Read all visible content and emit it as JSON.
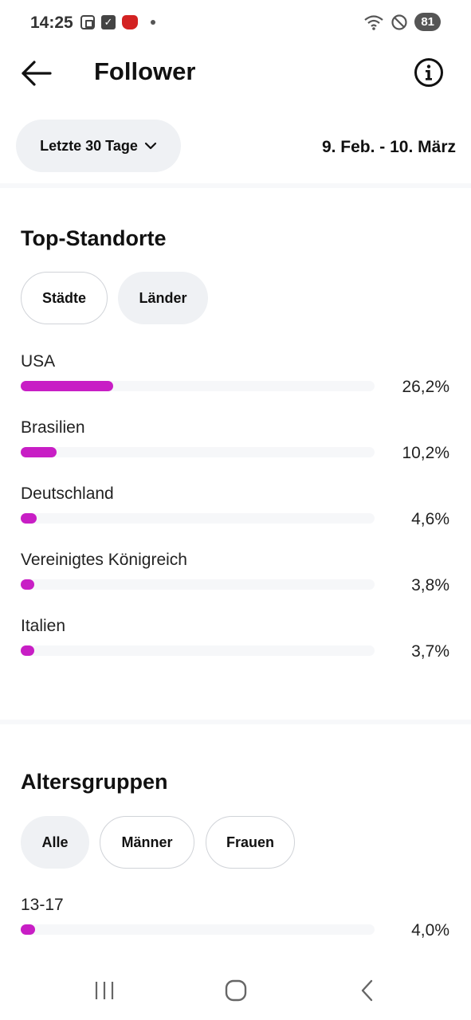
{
  "status_bar": {
    "time": "14:25",
    "battery": "81",
    "icons": [
      "screenshot-icon",
      "checkbox-icon",
      "app-notification-icon",
      "dot-icon",
      "wifi-icon",
      "do-not-disturb-icon",
      "battery-icon"
    ]
  },
  "header": {
    "title": "Follower",
    "back_icon": "arrow-left-icon",
    "info_icon": "info-circle-icon"
  },
  "filter": {
    "range_label": "Letzte 30 Tage",
    "date_range": "9. Feb. - 10. März"
  },
  "top_locations": {
    "title": "Top-Standorte",
    "tabs": [
      {
        "label": "Städte",
        "selected": false
      },
      {
        "label": "Länder",
        "selected": true
      }
    ],
    "rows": [
      {
        "label": "USA",
        "value": "26,2%",
        "percent": 26.2
      },
      {
        "label": "Brasilien",
        "value": "10,2%",
        "percent": 10.2
      },
      {
        "label": "Deutschland",
        "value": "4,6%",
        "percent": 4.6
      },
      {
        "label": "Vereinigtes Königreich",
        "value": "3,8%",
        "percent": 3.8
      },
      {
        "label": "Italien",
        "value": "3,7%",
        "percent": 3.7
      }
    ]
  },
  "age_groups": {
    "title": "Altersgruppen",
    "tabs": [
      {
        "label": "Alle",
        "selected": true
      },
      {
        "label": "Männer",
        "selected": false
      },
      {
        "label": "Frauen",
        "selected": false
      }
    ],
    "rows": [
      {
        "label": "13-17",
        "value": "4,0%",
        "percent": 4.0
      }
    ]
  },
  "colors": {
    "accent": "#c81ec5",
    "chip_bg": "#eff1f4",
    "track": "#f6f7f9"
  }
}
